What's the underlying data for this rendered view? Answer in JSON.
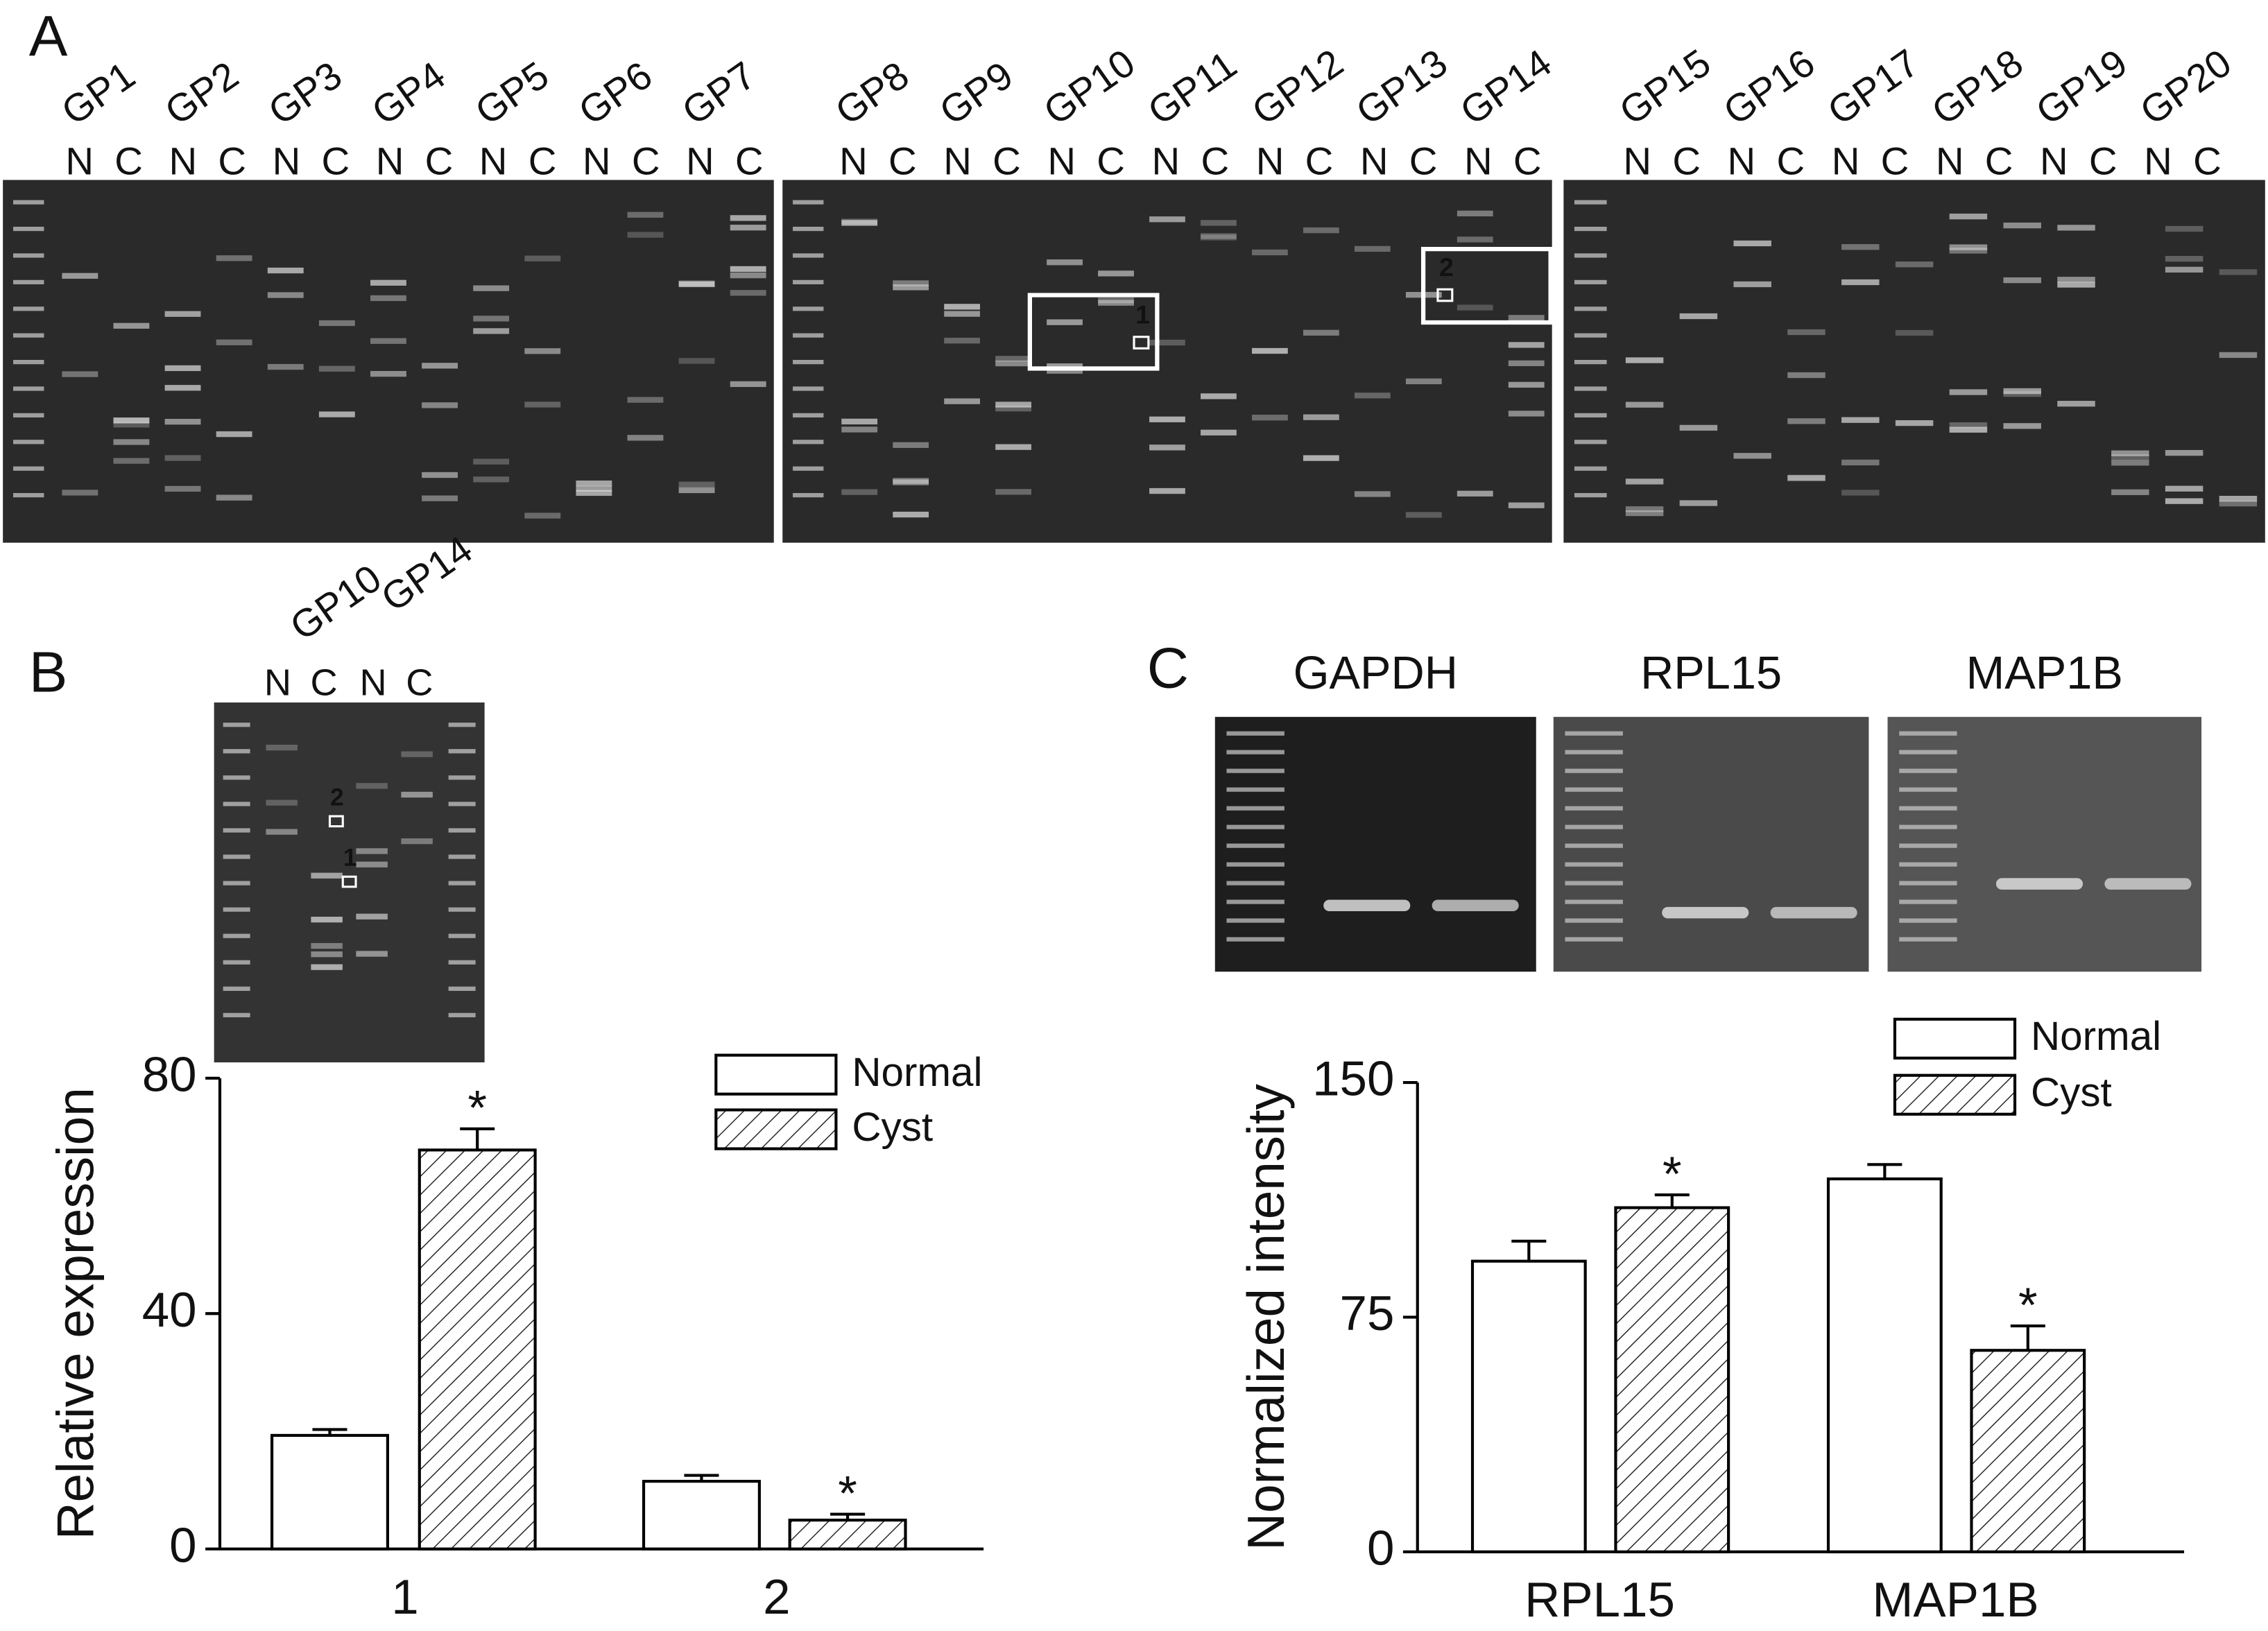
{
  "panel_labels": [
    "A",
    "B",
    "C"
  ],
  "gel_a": {
    "samples": [
      "GP1",
      "GP2",
      "GP3",
      "GP4",
      "GP5",
      "GP6",
      "GP7",
      "GP8",
      "GP9",
      "GP10",
      "GP11",
      "GP12",
      "GP13",
      "GP14",
      "GP15",
      "GP16",
      "GP17",
      "GP18",
      "GP19",
      "GP20"
    ],
    "lane_labels": [
      "N",
      "C"
    ],
    "boxes": [
      "1",
      "2"
    ]
  },
  "gel_b": {
    "samples": [
      "GP10",
      "GP14"
    ],
    "lane_labels": [
      "N",
      "C"
    ],
    "arrows": [
      "2",
      "1"
    ]
  },
  "gel_c": {
    "titles": [
      "GAPDH",
      "RPL15",
      "MAP1B"
    ]
  },
  "chart_data": [
    {
      "type": "bar",
      "ylabel": "Relative expression",
      "categories": [
        "1",
        "2"
      ],
      "ylim": [
        0,
        80
      ],
      "yticks": [
        0,
        40,
        80
      ],
      "series": [
        {
          "name": "Normal",
          "color": "#ffffff",
          "values": [
            19.3,
            11.5
          ],
          "errors": [
            1.0,
            1.0
          ]
        },
        {
          "name": "Cyst",
          "color": "#ffffff",
          "hatch": true,
          "values": [
            67.8,
            4.9
          ],
          "errors": [
            3.6,
            1.0
          ]
        }
      ],
      "annotations": [
        {
          "text": "*",
          "series": 1,
          "category": 0
        },
        {
          "text": "*",
          "series": 1,
          "category": 1
        }
      ]
    },
    {
      "type": "bar",
      "ylabel": "Normalized intensity",
      "categories": [
        "RPL15",
        "MAP1B"
      ],
      "ylim": [
        0,
        150
      ],
      "yticks": [
        0,
        75,
        150
      ],
      "series": [
        {
          "name": "Normal",
          "color": "#ffffff",
          "values": [
            92.9,
            119.2
          ],
          "errors": [
            6.4,
            4.6
          ]
        },
        {
          "name": "Cyst",
          "color": "#ffffff",
          "hatch": true,
          "values": [
            110.0,
            64.4
          ],
          "errors": [
            4.1,
            7.8
          ]
        }
      ],
      "annotations": [
        {
          "text": "*",
          "series": 1,
          "category": 0
        },
        {
          "text": "*",
          "series": 1,
          "category": 1
        }
      ]
    }
  ]
}
